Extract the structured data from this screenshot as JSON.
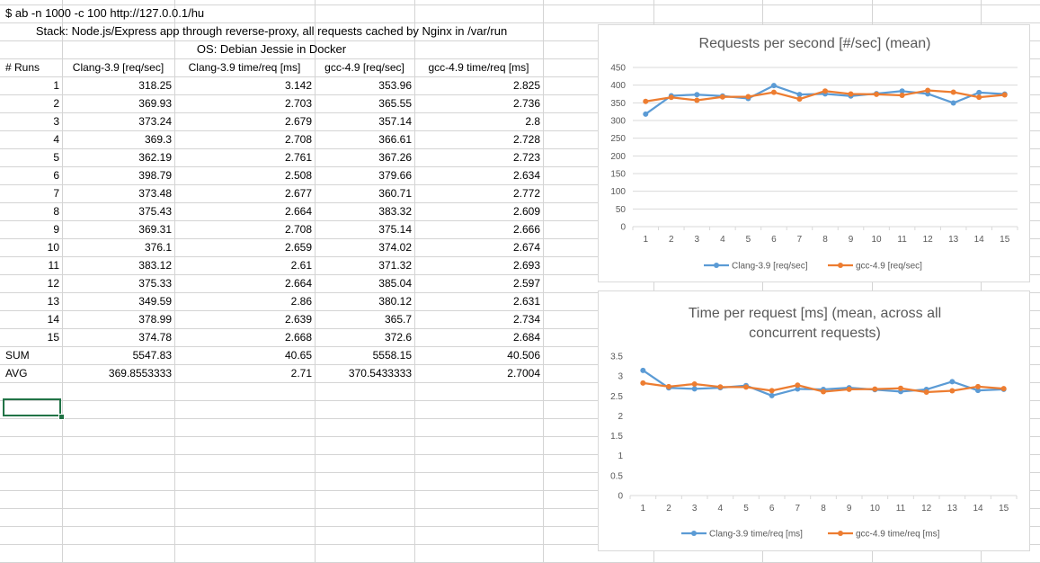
{
  "sheet": {
    "command": "$ ab -n 1000 -c 100 http://127.0.0.1/hu",
    "stack": "Stack: Node.js/Express app through reverse-proxy, all requests cached by Nginx in /var/run",
    "os": "OS: Debian Jessie in Docker",
    "headers": [
      "# Runs",
      "Clang-3.9 [req/sec]",
      "Clang-3.9 time/req [ms]",
      "gcc-4.9 [req/sec]",
      "gcc-4.9 time/req [ms]"
    ],
    "rows": [
      [
        "1",
        "318.25",
        "3.142",
        "353.96",
        "2.825"
      ],
      [
        "2",
        "369.93",
        "2.703",
        "365.55",
        "2.736"
      ],
      [
        "3",
        "373.24",
        "2.679",
        "357.14",
        "2.8"
      ],
      [
        "4",
        "369.3",
        "2.708",
        "366.61",
        "2.728"
      ],
      [
        "5",
        "362.19",
        "2.761",
        "367.26",
        "2.723"
      ],
      [
        "6",
        "398.79",
        "2.508",
        "379.66",
        "2.634"
      ],
      [
        "7",
        "373.48",
        "2.677",
        "360.71",
        "2.772"
      ],
      [
        "8",
        "375.43",
        "2.664",
        "383.32",
        "2.609"
      ],
      [
        "9",
        "369.31",
        "2.708",
        "375.14",
        "2.666"
      ],
      [
        "10",
        "376.1",
        "2.659",
        "374.02",
        "2.674"
      ],
      [
        "11",
        "383.12",
        "2.61",
        "371.32",
        "2.693"
      ],
      [
        "12",
        "375.33",
        "2.664",
        "385.04",
        "2.597"
      ],
      [
        "13",
        "349.59",
        "2.86",
        "380.12",
        "2.631"
      ],
      [
        "14",
        "378.99",
        "2.639",
        "365.7",
        "2.734"
      ],
      [
        "15",
        "374.78",
        "2.668",
        "372.6",
        "2.684"
      ]
    ],
    "sum": [
      "SUM",
      "5547.83",
      "40.65",
      "5558.15",
      "40.506"
    ],
    "avg": [
      "AVG",
      "369.8553333",
      "2.71",
      "370.5433333",
      "2.7004"
    ]
  },
  "colors": {
    "clang": "#5b9bd5",
    "gcc": "#ed7d31",
    "grid": "#d9d9d9",
    "selection": "#217346"
  },
  "chart_data": [
    {
      "type": "line",
      "title": "Requests per second [#/sec] (mean)",
      "categories": [
        "1",
        "2",
        "3",
        "4",
        "5",
        "6",
        "7",
        "8",
        "9",
        "10",
        "11",
        "12",
        "13",
        "14",
        "15"
      ],
      "yticks": [
        "0",
        "50",
        "100",
        "150",
        "200",
        "250",
        "300",
        "350",
        "400",
        "450"
      ],
      "ylim": [
        0,
        450
      ],
      "grid": true,
      "legend": "bottom",
      "series": [
        {
          "name": "Clang-3.9 [req/sec]",
          "values": [
            318.25,
            369.93,
            373.24,
            369.3,
            362.19,
            398.79,
            373.48,
            375.43,
            369.31,
            376.1,
            383.12,
            375.33,
            349.59,
            378.99,
            374.78
          ]
        },
        {
          "name": "gcc-4.9 [req/sec]",
          "values": [
            353.96,
            365.55,
            357.14,
            366.61,
            367.26,
            379.66,
            360.71,
            383.32,
            375.14,
            374.02,
            371.32,
            385.04,
            380.12,
            365.7,
            372.6
          ]
        }
      ]
    },
    {
      "type": "line",
      "title": [
        "Time per request [ms] (mean, across all",
        "concurrent requests)"
      ],
      "categories": [
        "1",
        "2",
        "3",
        "4",
        "5",
        "6",
        "7",
        "8",
        "9",
        "10",
        "11",
        "12",
        "13",
        "14",
        "15"
      ],
      "yticks": [
        "0",
        "0.5",
        "1",
        "1.5",
        "2",
        "2.5",
        "3",
        "3.5"
      ],
      "ylim": [
        0,
        3.5
      ],
      "grid": false,
      "legend": "bottom",
      "series": [
        {
          "name": "Clang-3.9 time/req [ms]",
          "values": [
            3.142,
            2.703,
            2.679,
            2.708,
            2.761,
            2.508,
            2.677,
            2.664,
            2.708,
            2.659,
            2.61,
            2.664,
            2.86,
            2.639,
            2.668
          ]
        },
        {
          "name": "gcc-4.9 time/req [ms]",
          "values": [
            2.825,
            2.736,
            2.8,
            2.728,
            2.723,
            2.634,
            2.772,
            2.609,
            2.666,
            2.674,
            2.693,
            2.597,
            2.631,
            2.734,
            2.684
          ]
        }
      ]
    }
  ]
}
